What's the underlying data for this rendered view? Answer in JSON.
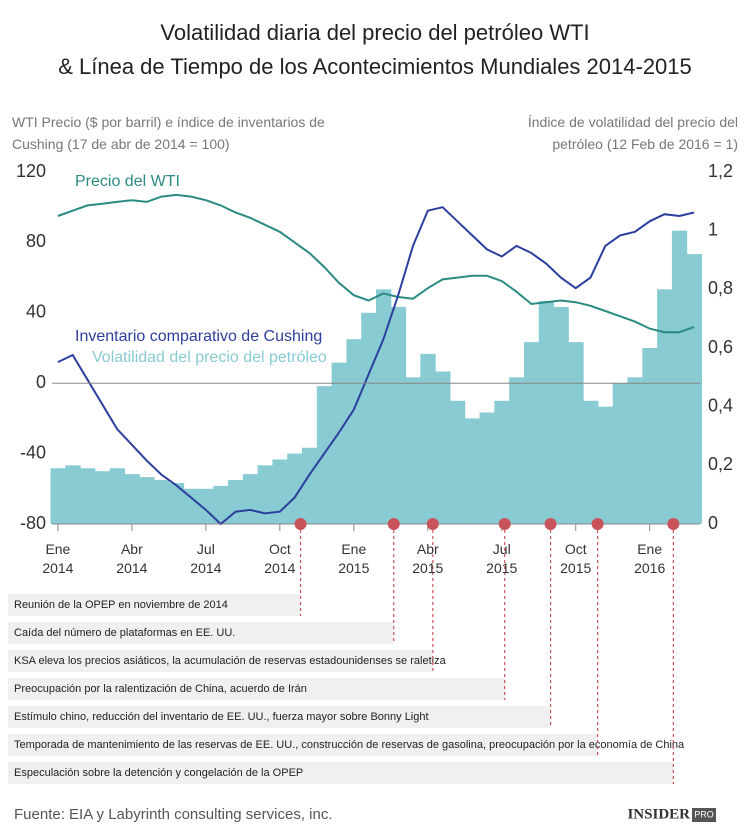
{
  "title": "Volatilidad diaria del precio del petróleo WTI",
  "subtitle": "& Línea de Tiempo de los Acontecimientos Mundiales 2014-2015",
  "chart_data": {
    "type": "combo",
    "y_label": "WTI Precio ($ por barril) e índice de inventarios de Cushing (17 de abr de 2014 = 100)",
    "y2_label": "Índice de volatilidad del precio del petróleo (12 Feb de 2016 = 1)",
    "x": [
      2014.0,
      2014.05,
      2014.1,
      2014.15,
      2014.2,
      2014.25,
      2014.3,
      2014.35,
      2014.4,
      2014.45,
      2014.5,
      2014.55,
      2014.6,
      2014.65,
      2014.7,
      2014.75,
      2014.8,
      2014.85,
      2014.9,
      2014.95,
      2015.0,
      2015.05,
      2015.1,
      2015.15,
      2015.2,
      2015.25,
      2015.3,
      2015.35,
      2015.4,
      2015.45,
      2015.5,
      2015.55,
      2015.6,
      2015.65,
      2015.7,
      2015.75,
      2015.8,
      2015.85,
      2015.9,
      2015.95,
      2016.0,
      2016.05,
      2016.1,
      2016.15
    ],
    "xlim": [
      2013.98,
      2016.17
    ],
    "xticks": [
      {
        "value": 2014.0,
        "label": "Ene 2014"
      },
      {
        "value": 2014.25,
        "label": "Abr 2014"
      },
      {
        "value": 2014.5,
        "label": "Jul 2014"
      },
      {
        "value": 2014.75,
        "label": "Oct 2014"
      },
      {
        "value": 2015.0,
        "label": "Ene 2015"
      },
      {
        "value": 2015.25,
        "label": "Abr 2015"
      },
      {
        "value": 2015.5,
        "label": "Jul 2015"
      },
      {
        "value": 2015.75,
        "label": "Oct 2015"
      },
      {
        "value": 2016.0,
        "label": "Ene 2016"
      }
    ],
    "ylim": [
      -80,
      120
    ],
    "yticks": [
      -80,
      -40,
      0,
      40,
      80,
      120
    ],
    "y2lim": [
      0,
      1.2
    ],
    "y2ticks": [
      0,
      {
        "value": 0.2,
        "label": "0,2"
      },
      {
        "value": 0.4,
        "label": "0,4"
      },
      {
        "value": 0.6,
        "label": "0,6"
      },
      {
        "value": 0.8,
        "label": "0,8"
      },
      1,
      {
        "value": 1.2,
        "label": "1,2"
      }
    ],
    "series": [
      {
        "name": "Volatilidad del precio del petróleo",
        "type": "bar",
        "axis": "y2",
        "color": "#88cbd3",
        "values": [
          0.19,
          0.2,
          0.19,
          0.18,
          0.19,
          0.17,
          0.16,
          0.15,
          0.14,
          0.12,
          0.12,
          0.13,
          0.15,
          0.17,
          0.2,
          0.22,
          0.24,
          0.26,
          0.47,
          0.55,
          0.63,
          0.72,
          0.8,
          0.74,
          0.5,
          0.58,
          0.52,
          0.42,
          0.36,
          0.38,
          0.42,
          0.5,
          0.62,
          0.76,
          0.74,
          0.62,
          0.42,
          0.4,
          0.48,
          0.5,
          0.6,
          0.8,
          1.0,
          0.92
        ]
      },
      {
        "name": "Precio del WTI",
        "type": "line",
        "color": "#2a8a84",
        "values": [
          95,
          98,
          101,
          102,
          103,
          104,
          103,
          106,
          107,
          106,
          104,
          101,
          97,
          94,
          90,
          86,
          80,
          74,
          66,
          57,
          50,
          47,
          51,
          49,
          48,
          54,
          59,
          60,
          61,
          61,
          58,
          52,
          45,
          46,
          47,
          46,
          44,
          41,
          38,
          35,
          31,
          29,
          29,
          32
        ]
      },
      {
        "name": "Inventario comparativo de Cushing",
        "type": "line",
        "color": "#2d3f9e",
        "values": [
          12,
          16,
          2,
          -12,
          -26,
          -35,
          -44,
          -52,
          -58,
          -65,
          -72,
          -80,
          -73,
          -72,
          -74,
          -73,
          -65,
          -52,
          -40,
          -28,
          -15,
          5,
          25,
          50,
          78,
          98,
          100,
          92,
          84,
          76,
          72,
          78,
          74,
          68,
          60,
          54,
          60,
          78,
          84,
          86,
          92,
          96,
          95,
          97
        ]
      }
    ],
    "events": [
      {
        "x": 2014.82,
        "label": "Reunión de la OPEP en noviembre de 2014"
      },
      {
        "x": 2015.135,
        "label": "Caída del número de plataformas en EE. UU."
      },
      {
        "x": 2015.267,
        "label": "KSA eleva los precios asiáticos, la acumulación de reservas estadounidenses se raletiza"
      },
      {
        "x": 2015.51,
        "label": "Preocupación por la ralentización de China, acuerdo de Irán"
      },
      {
        "x": 2015.665,
        "label": "Estímulo chino, reducción del inventario de EE. UU., fuerza mayor sobre Bonny Light"
      },
      {
        "x": 2015.824,
        "label": "Temporada de mantenimiento de las reservas de EE. UU., construcción de reservas de gasolina, preocupación por la economía de China"
      },
      {
        "x": 2016.08,
        "label": "Especulación sobre la detención y congelación de la OPEP"
      }
    ]
  },
  "source": "Fuente: EIA y Labyrinth consulting services, inc.",
  "logo": "INSIDER",
  "logo_suffix": "PRO"
}
